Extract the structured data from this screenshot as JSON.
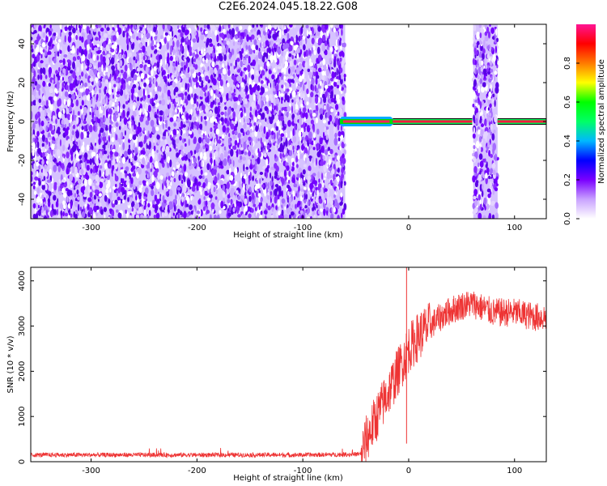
{
  "title": "C2E6.2024.045.18.22.G08",
  "chart_data": [
    {
      "type": "heatmap",
      "xlabel": "Height of straight line (km)",
      "ylabel": "Frequency (Hz)",
      "xlim": [
        -357,
        130
      ],
      "ylim": [
        -50,
        50
      ],
      "xticks": [
        -300,
        -200,
        -100,
        0,
        100
      ],
      "yticks": [
        -40,
        -20,
        0,
        20,
        40
      ],
      "colorbar": {
        "label": "Normalized spectral amplitude",
        "ticks": [
          0.0,
          0.2,
          0.4,
          0.6,
          0.8
        ],
        "range": [
          0,
          1
        ],
        "colors": [
          "#ffffff",
          "#c9a2ff",
          "#7a00ff",
          "#0000ff",
          "#00b8ff",
          "#00ff66",
          "#00ff00",
          "#ffff00",
          "#ff7a00",
          "#ff0000",
          "#ff1493"
        ]
      },
      "noise_regions_km": [
        [
          -357,
          -60
        ],
        [
          61,
          84
        ]
      ],
      "signal_line": {
        "frequency_hz": 0,
        "segments_km": [
          [
            -65,
            -15
          ],
          [
            -15,
            60
          ],
          [
            84,
            130
          ]
        ],
        "amplitude": 0.9
      }
    },
    {
      "type": "line",
      "xlabel": "Height of straight line (km)",
      "ylabel": "SNR (10 * v/v)",
      "xlim": [
        -357,
        130
      ],
      "ylim": [
        0,
        4300
      ],
      "xticks": [
        -300,
        -200,
        -100,
        0,
        100
      ],
      "yticks": [
        0,
        1000,
        2000,
        3000,
        4000
      ],
      "color": "#ee3333",
      "series": [
        {
          "x": [
            -357,
            -300,
            -200,
            -100,
            -60,
            -45,
            -40,
            -30,
            -20,
            -10,
            0,
            10,
            20,
            30,
            40,
            50,
            60,
            70,
            80,
            90,
            100,
            110,
            120,
            130
          ],
          "y": [
            150,
            150,
            150,
            150,
            160,
            170,
            500,
            1000,
            1500,
            2000,
            2500,
            2800,
            3000,
            3200,
            3350,
            3450,
            3500,
            3400,
            3300,
            3300,
            3300,
            3250,
            3200,
            3200
          ]
        }
      ],
      "spike": {
        "x": -2,
        "y": 4300
      }
    }
  ]
}
